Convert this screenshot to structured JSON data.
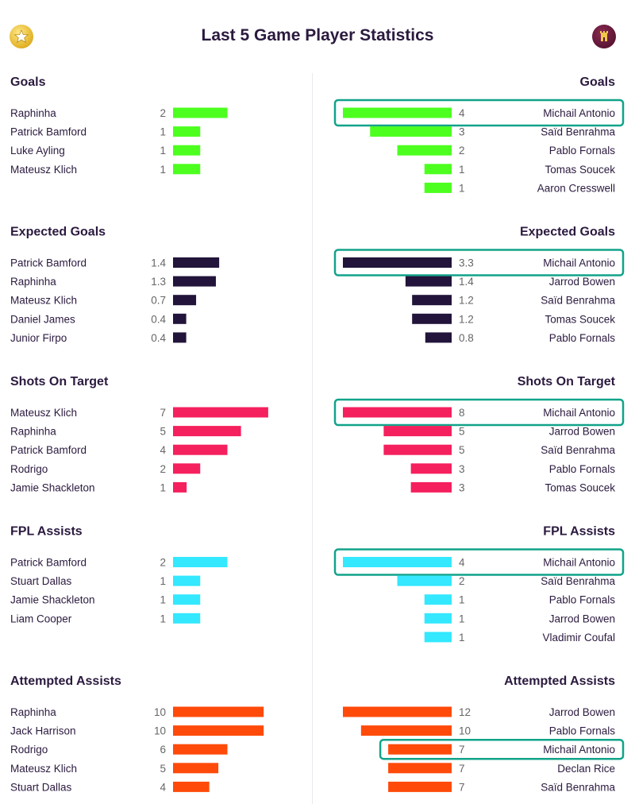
{
  "header": {
    "title": "Last 5 Game Player Statistics",
    "left_logo_icon": "leeds-crest-icon",
    "right_logo_icon": "west-ham-crest-icon"
  },
  "highlight_color": "#11a38a",
  "chart_data": [
    {
      "type": "bar",
      "stat": "Goals",
      "color": "#4cff1f",
      "max": 4,
      "left": [
        {
          "player": "Raphinha",
          "value": 2,
          "label": "2"
        },
        {
          "player": "Patrick Bamford",
          "value": 1,
          "label": "1"
        },
        {
          "player": "Luke Ayling",
          "value": 1,
          "label": "1"
        },
        {
          "player": "Mateusz Klich",
          "value": 1,
          "label": "1"
        }
      ],
      "right": [
        {
          "player": "Michail Antonio",
          "value": 4,
          "label": "4",
          "highlight": true
        },
        {
          "player": "Saïd Benrahma",
          "value": 3,
          "label": "3"
        },
        {
          "player": "Pablo Fornals",
          "value": 2,
          "label": "2"
        },
        {
          "player": "Tomas Soucek",
          "value": 1,
          "label": "1"
        },
        {
          "player": "Aaron Cresswell",
          "value": 1,
          "label": "1"
        }
      ]
    },
    {
      "type": "bar",
      "stat": "Expected Goals",
      "color": "#22143a",
      "max": 3.3,
      "left": [
        {
          "player": "Patrick Bamford",
          "value": 1.4,
          "label": "1.4"
        },
        {
          "player": "Raphinha",
          "value": 1.3,
          "label": "1.3"
        },
        {
          "player": "Mateusz Klich",
          "value": 0.7,
          "label": "0.7"
        },
        {
          "player": "Daniel James",
          "value": 0.4,
          "label": "0.4"
        },
        {
          "player": "Junior Firpo",
          "value": 0.4,
          "label": "0.4"
        }
      ],
      "right": [
        {
          "player": "Michail Antonio",
          "value": 3.3,
          "label": "3.3",
          "highlight": true
        },
        {
          "player": "Jarrod Bowen",
          "value": 1.4,
          "label": "1.4"
        },
        {
          "player": "Saïd Benrahma",
          "value": 1.2,
          "label": "1.2"
        },
        {
          "player": "Tomas Soucek",
          "value": 1.2,
          "label": "1.2"
        },
        {
          "player": "Pablo Fornals",
          "value": 0.8,
          "label": "0.8"
        }
      ]
    },
    {
      "type": "bar",
      "stat": "Shots On Target",
      "color": "#f5205e",
      "max": 8,
      "left": [
        {
          "player": "Mateusz Klich",
          "value": 7,
          "label": "7"
        },
        {
          "player": "Raphinha",
          "value": 5,
          "label": "5"
        },
        {
          "player": "Patrick Bamford",
          "value": 4,
          "label": "4"
        },
        {
          "player": "Rodrigo",
          "value": 2,
          "label": "2"
        },
        {
          "player": "Jamie Shackleton",
          "value": 1,
          "label": "1"
        }
      ],
      "right": [
        {
          "player": "Michail Antonio",
          "value": 8,
          "label": "8",
          "highlight": true
        },
        {
          "player": "Jarrod Bowen",
          "value": 5,
          "label": "5"
        },
        {
          "player": "Saïd Benrahma",
          "value": 5,
          "label": "5"
        },
        {
          "player": "Pablo Fornals",
          "value": 3,
          "label": "3"
        },
        {
          "player": "Tomas Soucek",
          "value": 3,
          "label": "3"
        }
      ]
    },
    {
      "type": "bar",
      "stat": "FPL Assists",
      "color": "#33e8ff",
      "max": 4,
      "left": [
        {
          "player": "Patrick Bamford",
          "value": 2,
          "label": "2"
        },
        {
          "player": "Stuart Dallas",
          "value": 1,
          "label": "1"
        },
        {
          "player": "Jamie Shackleton",
          "value": 1,
          "label": "1"
        },
        {
          "player": "Liam Cooper",
          "value": 1,
          "label": "1"
        }
      ],
      "right": [
        {
          "player": "Michail Antonio",
          "value": 4,
          "label": "4",
          "highlight": true
        },
        {
          "player": "Saïd Benrahma",
          "value": 2,
          "label": "2"
        },
        {
          "player": "Pablo Fornals",
          "value": 1,
          "label": "1"
        },
        {
          "player": "Jarrod Bowen",
          "value": 1,
          "label": "1"
        },
        {
          "player": "Vladimir Coufal",
          "value": 1,
          "label": "1"
        }
      ]
    },
    {
      "type": "bar",
      "stat": "Attempted Assists",
      "color": "#ff4a0a",
      "max": 12,
      "left": [
        {
          "player": "Raphinha",
          "value": 10,
          "label": "10"
        },
        {
          "player": "Jack Harrison",
          "value": 10,
          "label": "10"
        },
        {
          "player": "Rodrigo",
          "value": 6,
          "label": "6"
        },
        {
          "player": "Mateusz Klich",
          "value": 5,
          "label": "5"
        },
        {
          "player": "Stuart Dallas",
          "value": 4,
          "label": "4"
        }
      ],
      "right": [
        {
          "player": "Jarrod Bowen",
          "value": 12,
          "label": "12"
        },
        {
          "player": "Pablo Fornals",
          "value": 10,
          "label": "10"
        },
        {
          "player": "Michail Antonio",
          "value": 7,
          "label": "7",
          "highlight": true
        },
        {
          "player": "Declan Rice",
          "value": 7,
          "label": "7"
        },
        {
          "player": "Saïd Benrahma",
          "value": 7,
          "label": "7"
        }
      ]
    }
  ]
}
